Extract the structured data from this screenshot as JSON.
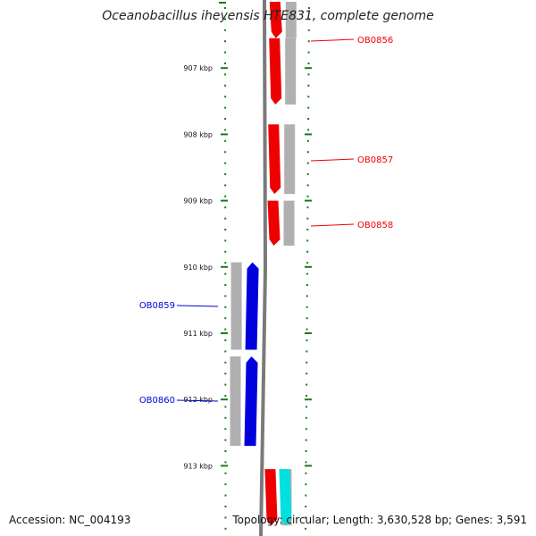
{
  "title": "Oceanobacillus iheyensis HTE831, complete genome",
  "footer": {
    "accession": "Accession: NC_004193",
    "topology": "Topology: circular; Length: 3,630,528 bp; Genes: 3,591"
  },
  "colors": {
    "tick": "#1a7a1a",
    "backbone": "#7a7a7a",
    "forward_gene": "#ee0000",
    "reverse_gene": "#0000dd",
    "rna_gene": "#00e0e0",
    "shadow": "#b0b0b0"
  },
  "chart_data": {
    "type": "genome-map",
    "axis_unit": "kbp",
    "ticks": [
      "907 kbp",
      "908 kbp",
      "909 kbp",
      "910 kbp",
      "911 kbp",
      "912 kbp",
      "913 kbp"
    ],
    "tick_values_kbp": [
      907,
      908,
      909,
      910,
      911,
      912,
      913
    ],
    "view_range_kbp": [
      906.0,
      913.9
    ],
    "genes": [
      {
        "label": "",
        "strand": "+",
        "start_kbp": 906.0,
        "end_kbp": 906.55,
        "color": "forward_gene"
      },
      {
        "label": "OB0856",
        "strand": "+",
        "start_kbp": 906.55,
        "end_kbp": 907.55,
        "color": "forward_gene"
      },
      {
        "label": "OB0857",
        "strand": "+",
        "start_kbp": 907.85,
        "end_kbp": 908.9,
        "color": "forward_gene"
      },
      {
        "label": "OB0858",
        "strand": "+",
        "start_kbp": 909.0,
        "end_kbp": 909.68,
        "color": "forward_gene"
      },
      {
        "label": "OB0859",
        "strand": "-",
        "start_kbp": 909.93,
        "end_kbp": 911.25,
        "color": "reverse_gene"
      },
      {
        "label": "OB0860",
        "strand": "-",
        "start_kbp": 911.35,
        "end_kbp": 912.7,
        "color": "reverse_gene"
      },
      {
        "label": "",
        "strand": "+",
        "start_kbp": 913.05,
        "end_kbp": 913.9,
        "color": "forward_gene"
      },
      {
        "label": "",
        "strand": "+",
        "start_kbp": 913.05,
        "end_kbp": 913.9,
        "color": "rna_gene"
      }
    ]
  }
}
